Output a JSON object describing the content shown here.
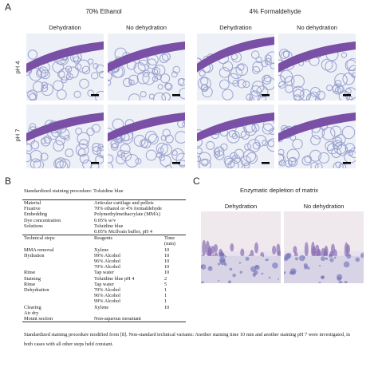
{
  "panel_a": {
    "label": "A",
    "groups": [
      {
        "title": "70% Ethanol",
        "columns": [
          "Dehydration",
          "No  dehydration"
        ]
      },
      {
        "title": "4% Formaldehyde",
        "columns": [
          "Dehydration",
          "No  dehydration"
        ]
      }
    ],
    "rows": [
      "pH 4",
      "pH 7"
    ]
  },
  "panel_b": {
    "label": "B",
    "title": "Standardized staining procedure: Toluidine blue",
    "table": {
      "rows": [
        [
          "Material",
          "Articular cartilage and pellets"
        ],
        [
          "Fixative",
          "70% ethanol or 4% formaldehyde"
        ],
        [
          "Embedding",
          "Polymethylmethacrylate (MMA)"
        ],
        [
          "Dye concentration",
          "0.05% w/v"
        ],
        [
          "Solutions",
          "Toluidine blue"
        ],
        [
          null,
          "0.05% McIlvain buffer, pH 4"
        ],
        [
          "Technical steps",
          "Reagents",
          "Time (min)"
        ],
        [
          "MMA removal",
          "Xylene",
          "10"
        ],
        [
          "Hydration",
          "99% Alcohol",
          "10"
        ],
        [
          null,
          "96% Alcohol",
          "10"
        ],
        [
          null,
          "70% Alcohol",
          "10"
        ],
        [
          "Rinse",
          "Tap water",
          "10"
        ],
        [
          "Staining",
          "Toluidine blue pH 4",
          "2"
        ],
        [
          "Rinse",
          "Tap water",
          "5"
        ],
        [
          "Dehydration",
          "70% Alcohol",
          "1"
        ],
        [
          null,
          "96% Alcohol",
          "1"
        ],
        [
          null,
          "99% Alcohol",
          "1"
        ],
        [
          "Clearing",
          "Xylene",
          "10"
        ],
        [
          "Air dry"
        ],
        [
          "Mount section",
          "Non-aqueous mountant"
        ]
      ]
    },
    "footnote": "Standardized staining procedure modified from [8]. Non-standard technical variants: Another staining time 10 min and another staining pH 7 were investigated, in both cases with all other steps held constant."
  },
  "panel_c": {
    "label": "C",
    "title": "Enzymatic depletion of matrix",
    "columns": [
      "Dehydration",
      "No dehydration"
    ]
  }
}
